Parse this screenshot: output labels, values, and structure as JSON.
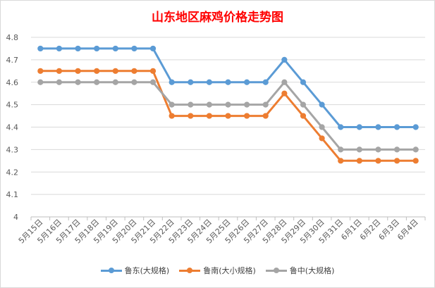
{
  "chart_data": {
    "type": "line",
    "title": "山东地区麻鸡价格走势图",
    "xlabel": "",
    "ylabel": "",
    "categories": [
      "5月15日",
      "5月16日",
      "5月17日",
      "5月18日",
      "5月19日",
      "5月20日",
      "5月21日",
      "5月22日",
      "5月23日",
      "5月24日",
      "5月25日",
      "5月26日",
      "5月27日",
      "5月28日",
      "5月29日",
      "5月30日",
      "5月31日",
      "6月1日",
      "6月2日",
      "6月3日",
      "6月4日"
    ],
    "ylim": [
      4,
      4.8
    ],
    "yticks": [
      "4",
      "4.1",
      "4.2",
      "4.3",
      "4.4",
      "4.5",
      "4.6",
      "4.7",
      "4.8"
    ],
    "grid": "horizontal",
    "legend_position": "bottom",
    "series": [
      {
        "name": "鲁东(大规格)",
        "color": "#5b9bd5",
        "values": [
          4.75,
          4.75,
          4.75,
          4.75,
          4.75,
          4.75,
          4.75,
          4.6,
          4.6,
          4.6,
          4.6,
          4.6,
          4.6,
          4.7,
          4.6,
          4.5,
          4.4,
          4.4,
          4.4,
          4.4,
          4.4
        ]
      },
      {
        "name": "鲁南(大小规格)",
        "color": "#ed7d31",
        "values": [
          4.65,
          4.65,
          4.65,
          4.65,
          4.65,
          4.65,
          4.65,
          4.45,
          4.45,
          4.45,
          4.45,
          4.45,
          4.45,
          4.55,
          4.45,
          4.35,
          4.25,
          4.25,
          4.25,
          4.25,
          4.25
        ]
      },
      {
        "name": "鲁中(大规格)",
        "color": "#a5a5a5",
        "values": [
          4.6,
          4.6,
          4.6,
          4.6,
          4.6,
          4.6,
          4.6,
          4.5,
          4.5,
          4.5,
          4.5,
          4.5,
          4.5,
          4.6,
          4.5,
          4.4,
          4.3,
          4.3,
          4.3,
          4.3,
          4.3
        ]
      }
    ]
  }
}
